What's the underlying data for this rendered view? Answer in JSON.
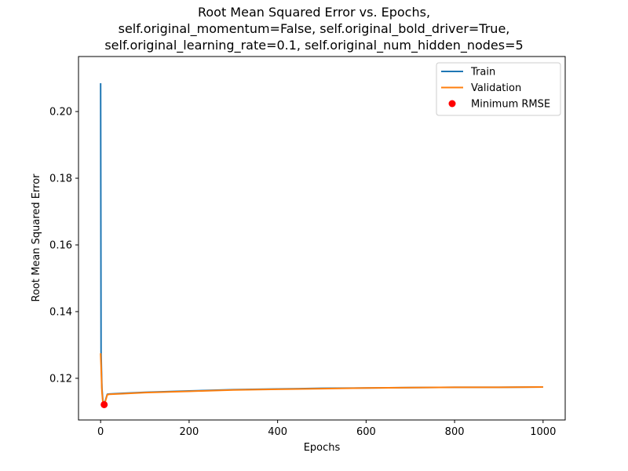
{
  "chart_data": {
    "type": "line",
    "title_lines": [
      "Root Mean Squared Error vs. Epochs,",
      "self.original_momentum=False, self.original_bold_driver=True,",
      "self.original_learning_rate=0.1, self.original_num_hidden_nodes=5"
    ],
    "xlabel": "Epochs",
    "ylabel": "Root Mean Squared Error",
    "xlim": [
      -50,
      1050
    ],
    "ylim": [
      0.1075,
      0.2165
    ],
    "xticks": [
      0,
      200,
      400,
      600,
      800,
      1000
    ],
    "xtick_labels": [
      "0",
      "200",
      "400",
      "600",
      "800",
      "1000"
    ],
    "yticks": [
      0.12,
      0.14,
      0.16,
      0.18,
      0.2
    ],
    "ytick_labels": [
      "0.12",
      "0.14",
      "0.16",
      "0.18",
      "0.20"
    ],
    "grid": false,
    "legend_position": "upper right",
    "series": [
      {
        "name": "Train",
        "color": "#1f77b4",
        "x": [
          0,
          1,
          2,
          3,
          5,
          7,
          8,
          10,
          15,
          20,
          50,
          100,
          200,
          300,
          400,
          500,
          600,
          700,
          800,
          900,
          1000
        ],
        "y": [
          0.2085,
          0.128,
          0.122,
          0.117,
          0.1135,
          0.1125,
          0.1122,
          0.113,
          0.1152,
          0.1153,
          0.1155,
          0.1158,
          0.1162,
          0.1166,
          0.1168,
          0.117,
          0.1171,
          0.1172,
          0.1173,
          0.1173,
          0.1174
        ]
      },
      {
        "name": "Validation",
        "color": "#ff7f0e",
        "x": [
          0,
          1,
          2,
          3,
          5,
          7,
          8,
          10,
          15,
          20,
          50,
          100,
          200,
          300,
          400,
          500,
          600,
          700,
          800,
          900,
          1000
        ],
        "y": [
          0.1275,
          0.124,
          0.12,
          0.116,
          0.113,
          0.1123,
          0.1121,
          0.1128,
          0.1151,
          0.1152,
          0.1154,
          0.1157,
          0.1161,
          0.1165,
          0.1167,
          0.1169,
          0.1171,
          0.1172,
          0.1173,
          0.1173,
          0.1174
        ]
      }
    ],
    "marker": {
      "name": "Minimum RMSE",
      "color": "#ff0000",
      "x": 8,
      "y": 0.1121
    }
  }
}
